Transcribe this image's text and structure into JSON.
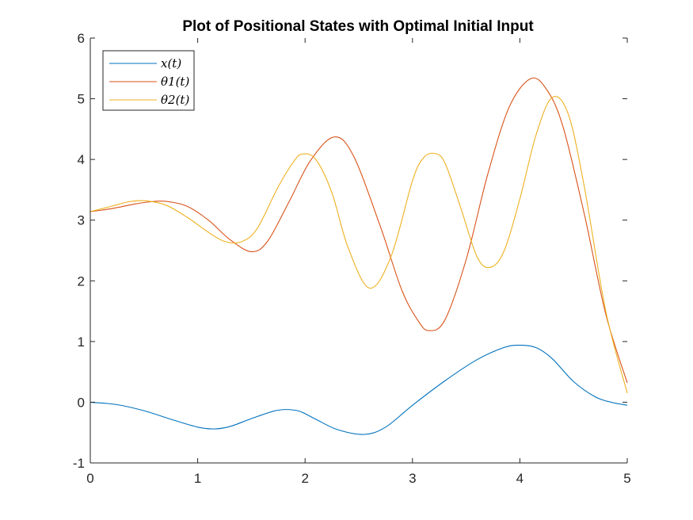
{
  "chart_data": {
    "type": "line",
    "title": "Plot of Positional States with Optimal Initial Input",
    "xlabel": "",
    "ylabel": "",
    "xlim": [
      0,
      5
    ],
    "ylim": [
      -1,
      6
    ],
    "xticks": [
      0,
      1,
      2,
      3,
      4,
      5
    ],
    "yticks": [
      -1,
      0,
      1,
      2,
      3,
      4,
      5,
      6
    ],
    "grid": false,
    "legend_position": "top-left",
    "series": [
      {
        "name": "x(t)",
        "color": "#0072BD",
        "x": [
          0,
          0.25,
          0.5,
          0.75,
          1.0,
          1.15,
          1.3,
          1.5,
          1.7,
          1.82,
          1.95,
          2.1,
          2.3,
          2.55,
          2.75,
          3.0,
          3.3,
          3.6,
          3.85,
          4.0,
          4.15,
          4.3,
          4.5,
          4.7,
          4.85,
          5.0
        ],
        "y": [
          0.0,
          -0.04,
          -0.14,
          -0.28,
          -0.41,
          -0.44,
          -0.4,
          -0.27,
          -0.15,
          -0.12,
          -0.15,
          -0.28,
          -0.45,
          -0.53,
          -0.41,
          -0.05,
          0.35,
          0.7,
          0.9,
          0.94,
          0.9,
          0.72,
          0.34,
          0.09,
          0.0,
          -0.05
        ]
      },
      {
        "name": "θ1(t)",
        "color": "#D95319",
        "x": [
          0,
          0.2,
          0.4,
          0.55,
          0.7,
          0.9,
          1.1,
          1.3,
          1.5,
          1.65,
          1.85,
          2.05,
          2.27,
          2.45,
          2.7,
          2.9,
          3.05,
          3.15,
          3.3,
          3.5,
          3.7,
          3.9,
          4.1,
          4.25,
          4.4,
          4.6,
          4.8,
          5.0
        ],
        "y": [
          3.14,
          3.19,
          3.26,
          3.3,
          3.31,
          3.23,
          3.0,
          2.68,
          2.48,
          2.65,
          3.3,
          3.98,
          4.37,
          4.06,
          2.9,
          1.85,
          1.35,
          1.18,
          1.35,
          2.35,
          3.75,
          4.86,
          5.33,
          5.15,
          4.55,
          3.1,
          1.45,
          0.32
        ]
      },
      {
        "name": "θ2(t)",
        "color": "#EDB120",
        "x": [
          0,
          0.2,
          0.35,
          0.5,
          0.7,
          0.9,
          1.1,
          1.25,
          1.4,
          1.55,
          1.75,
          1.9,
          1.98,
          2.1,
          2.25,
          2.4,
          2.6,
          2.8,
          3.0,
          3.1,
          3.2,
          3.3,
          3.45,
          3.6,
          3.72,
          3.85,
          4.0,
          4.15,
          4.3,
          4.45,
          4.6,
          4.8,
          5.0
        ],
        "y": [
          3.14,
          3.23,
          3.3,
          3.32,
          3.25,
          3.05,
          2.8,
          2.65,
          2.64,
          2.85,
          3.55,
          3.98,
          4.09,
          4.0,
          3.45,
          2.55,
          1.88,
          2.4,
          3.65,
          4.02,
          4.1,
          3.95,
          3.2,
          2.4,
          2.22,
          2.48,
          3.35,
          4.4,
          5.02,
          4.75,
          3.55,
          1.5,
          0.15
        ]
      }
    ]
  }
}
